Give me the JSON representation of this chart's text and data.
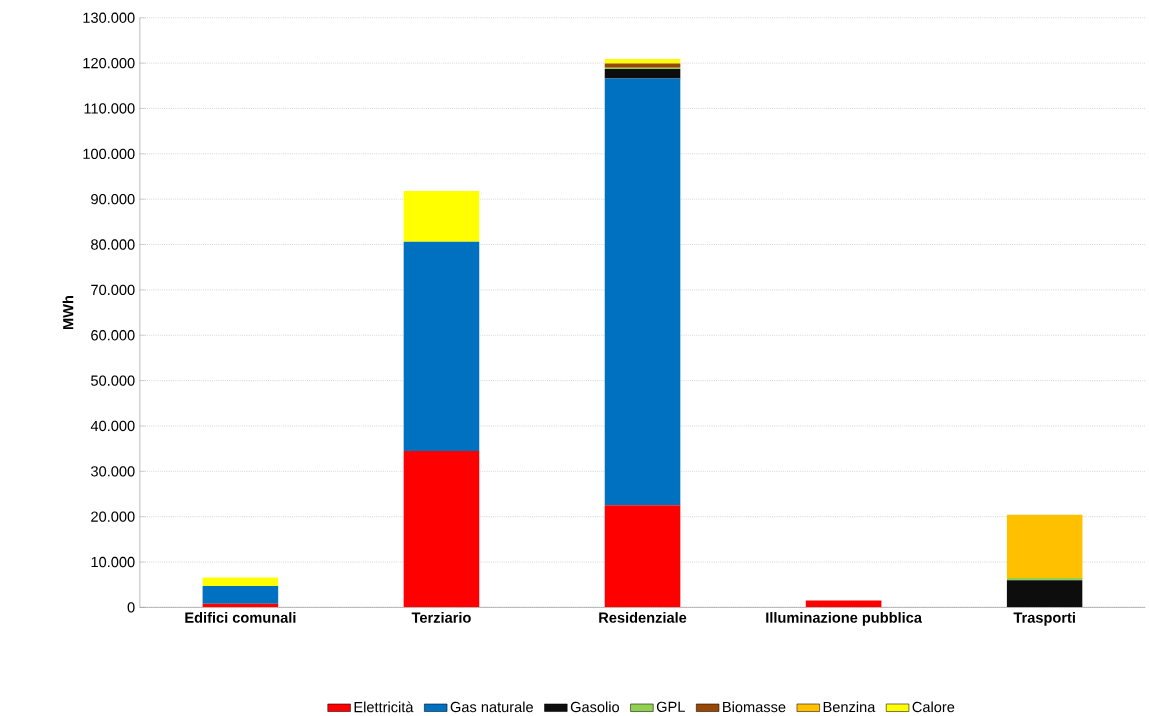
{
  "chart_data": {
    "type": "bar",
    "stacked": true,
    "ylabel": "MWh",
    "categories": [
      "Edifici comunali",
      "Terziario",
      "Residenziale",
      "Illuminazione pubblica",
      "Trasporti"
    ],
    "series": [
      {
        "name": "Elettricità",
        "color": "#ff0000",
        "values": [
          800,
          34500,
          22500,
          1500,
          0
        ]
      },
      {
        "name": "Gas naturale",
        "color": "#0070c0",
        "values": [
          3900,
          46100,
          94100,
          0,
          0
        ]
      },
      {
        "name": "Gasolio",
        "color": "#0d0d0d",
        "values": [
          0,
          0,
          2100,
          0,
          6000
        ]
      },
      {
        "name": "GPL",
        "color": "#92d050",
        "values": [
          0,
          0,
          300,
          0,
          500
        ]
      },
      {
        "name": "Biomasse",
        "color": "#984806",
        "values": [
          0,
          0,
          900,
          0,
          0
        ]
      },
      {
        "name": "Benzina",
        "color": "#ffc000",
        "values": [
          0,
          0,
          0,
          0,
          13900
        ]
      },
      {
        "name": "Calore",
        "color": "#ffff00",
        "values": [
          1900,
          11200,
          1000,
          0,
          0
        ]
      }
    ],
    "ylim": [
      0,
      130000
    ],
    "yticks": [
      {
        "value": 0,
        "label": "0"
      },
      {
        "value": 10000,
        "label": "10.000"
      },
      {
        "value": 20000,
        "label": "20.000"
      },
      {
        "value": 30000,
        "label": "30.000"
      },
      {
        "value": 40000,
        "label": "40.000"
      },
      {
        "value": 50000,
        "label": "50.000"
      },
      {
        "value": 60000,
        "label": "60.000"
      },
      {
        "value": 70000,
        "label": "70.000"
      },
      {
        "value": 80000,
        "label": "80.000"
      },
      {
        "value": 90000,
        "label": "90.000"
      },
      {
        "value": 100000,
        "label": "100.000"
      },
      {
        "value": 110000,
        "label": "110.000"
      },
      {
        "value": 120000,
        "label": "120.000"
      },
      {
        "value": 130000,
        "label": "130.000"
      }
    ],
    "grid": "y",
    "legend": "bottom"
  }
}
